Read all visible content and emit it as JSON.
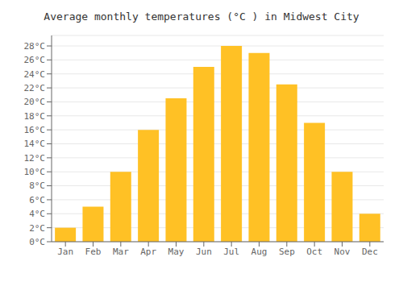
{
  "chart_data": {
    "type": "bar",
    "title": "Average monthly temperatures (°C ) in Midwest City",
    "categories": [
      "Jan",
      "Feb",
      "Mar",
      "Apr",
      "May",
      "Jun",
      "Jul",
      "Aug",
      "Sep",
      "Oct",
      "Nov",
      "Dec"
    ],
    "values": [
      2,
      5,
      10,
      16,
      20.5,
      25,
      28,
      27,
      22.5,
      17,
      10,
      4
    ],
    "color": "#FFC125",
    "ylim": [
      0,
      29.5
    ],
    "yticks": [
      {
        "value": 0,
        "label": "0°C"
      },
      {
        "value": 2,
        "label": "2°C"
      },
      {
        "value": 4,
        "label": "4°C"
      },
      {
        "value": 6,
        "label": "6°C"
      },
      {
        "value": 8,
        "label": "8°C"
      },
      {
        "value": 10,
        "label": "10°C"
      },
      {
        "value": 12,
        "label": "12°C"
      },
      {
        "value": 14,
        "label": "14°C"
      },
      {
        "value": 16,
        "label": "16°C"
      },
      {
        "value": 18,
        "label": "18°C"
      },
      {
        "value": 20,
        "label": "20°C"
      },
      {
        "value": 22,
        "label": "22°C"
      },
      {
        "value": 24,
        "label": "24°C"
      },
      {
        "value": 26,
        "label": "26°C"
      },
      {
        "value": 28,
        "label": "28°C"
      }
    ],
    "grid": true
  }
}
